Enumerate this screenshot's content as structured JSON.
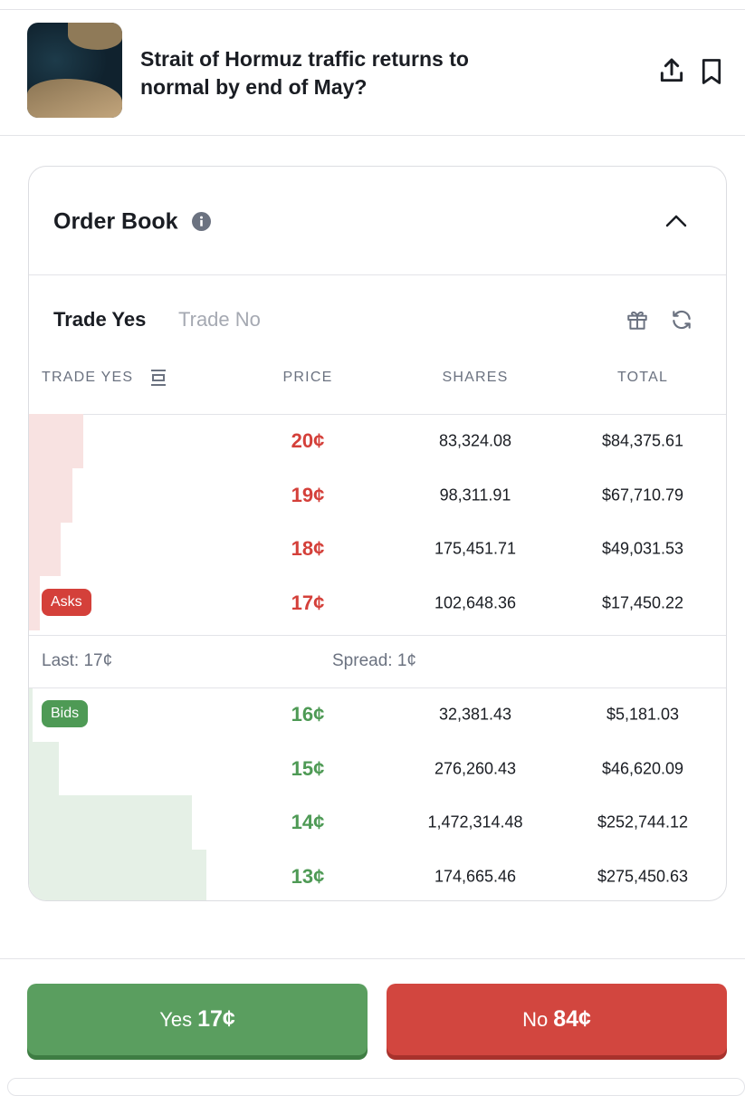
{
  "header": {
    "title": "Strait of Hormuz traffic returns to normal by end of May?"
  },
  "order_book": {
    "title": "Order Book",
    "tabs": [
      "Trade Yes",
      "Trade No"
    ],
    "columns": [
      "TRADE YES",
      "PRICE",
      "SHARES",
      "TOTAL"
    ],
    "asks_label": "Asks",
    "asks": [
      {
        "price": "20¢",
        "shares": "83,324.08",
        "total": "$84,375.61"
      },
      {
        "price": "19¢",
        "shares": "98,311.91",
        "total": "$67,710.79"
      },
      {
        "price": "18¢",
        "shares": "175,451.71",
        "total": "$49,031.53"
      },
      {
        "price": "17¢",
        "shares": "102,648.36",
        "total": "$17,450.22"
      }
    ],
    "last": "Last: 17¢",
    "spread": "Spread: 1¢",
    "bids_label": "Bids",
    "bids": [
      {
        "price": "16¢",
        "shares": "32,381.43",
        "total": "$5,181.03"
      },
      {
        "price": "15¢",
        "shares": "276,260.43",
        "total": "$46,620.09"
      },
      {
        "price": "14¢",
        "shares": "1,472,314.48",
        "total": "$252,744.12"
      },
      {
        "price": "13¢",
        "shares": "174,665.46",
        "total": "$275,450.63"
      }
    ]
  },
  "buttons": {
    "yes": {
      "label": "Yes",
      "price": "17¢"
    },
    "no": {
      "label": "No",
      "price": "84¢"
    }
  }
}
